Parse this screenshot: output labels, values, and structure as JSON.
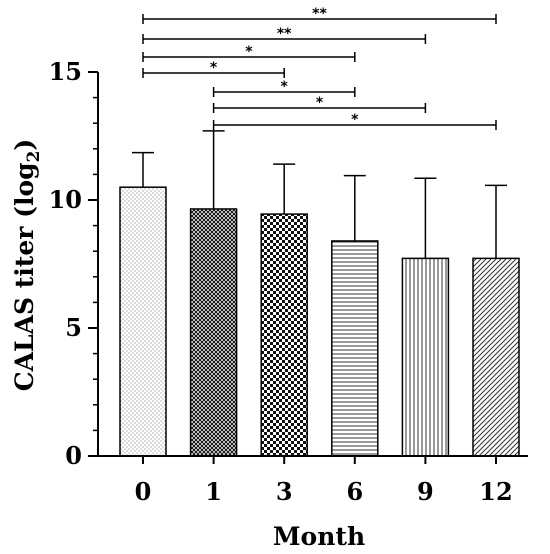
{
  "chart_data": {
    "type": "bar",
    "categories": [
      "0",
      "1",
      "3",
      "6",
      "9",
      "12"
    ],
    "values": [
      10.5,
      9.65,
      9.45,
      8.4,
      7.72,
      7.72
    ],
    "error_plus": [
      1.35,
      3.05,
      1.95,
      2.55,
      3.13,
      2.85
    ],
    "patterns": [
      "dots",
      "dense-crosshatch",
      "checker",
      "horizontal-lines",
      "vertical-lines",
      "diagonal-lines"
    ],
    "xlabel": "Month",
    "ylabel_main": "CALAS titer (log",
    "ylabel_sub": "2",
    "ylabel_close": ")",
    "ylim": [
      0,
      15
    ],
    "yticks": [
      "0",
      "5",
      "10",
      "15"
    ],
    "grid": false,
    "significance": [
      {
        "from": "0",
        "to": "12",
        "label": "**"
      },
      {
        "from": "0",
        "to": "9",
        "label": "**"
      },
      {
        "from": "0",
        "to": "6",
        "label": "*"
      },
      {
        "from": "0",
        "to": "3",
        "label": "*"
      },
      {
        "from": "1",
        "to": "6",
        "label": "*"
      },
      {
        "from": "1",
        "to": "9",
        "label": "*"
      },
      {
        "from": "1",
        "to": "12",
        "label": "*"
      }
    ]
  }
}
